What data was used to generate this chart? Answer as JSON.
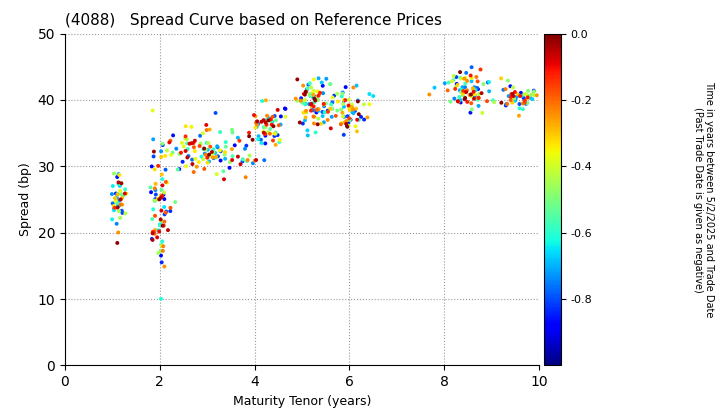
{
  "title": "(4088)   Spread Curve based on Reference Prices",
  "xlabel": "Maturity Tenor (years)",
  "ylabel": "Spread (bp)",
  "colorbar_label_line1": "Time in years between 5/2/2025 and Trade Date",
  "colorbar_label_line2": "(Past Trade Date is given as negative)",
  "xlim": [
    0,
    10
  ],
  "ylim": [
    0,
    50
  ],
  "xticks": [
    0,
    2,
    4,
    6,
    8,
    10
  ],
  "yticks": [
    0,
    10,
    20,
    30,
    40,
    50
  ],
  "cmap": "jet",
  "vmin": -1.0,
  "vmax": 0.0,
  "colorbar_ticks": [
    0.0,
    -0.2,
    -0.4,
    -0.6,
    -0.8
  ],
  "point_size": 8,
  "clusters": [
    {
      "tc": 1.15,
      "ts": 0.08,
      "sc": 25.0,
      "ss": 2.5,
      "n": 50,
      "cmin": -0.9,
      "cmax": 0.0
    },
    {
      "tc": 2.0,
      "ts": 0.12,
      "sc": 23.0,
      "ss": 4.0,
      "n": 70,
      "cmin": -0.9,
      "cmax": 0.0
    },
    {
      "tc": 3.0,
      "ts": 0.55,
      "sc": 32.5,
      "ss": 1.8,
      "n": 120,
      "cmin": -0.9,
      "cmax": 0.0
    },
    {
      "tc": 4.3,
      "ts": 0.2,
      "sc": 36.0,
      "ss": 1.5,
      "n": 60,
      "cmin": -0.9,
      "cmax": 0.0
    },
    {
      "tc": 5.2,
      "ts": 0.22,
      "sc": 39.5,
      "ss": 2.0,
      "n": 90,
      "cmin": -0.9,
      "cmax": 0.0
    },
    {
      "tc": 5.9,
      "ts": 0.25,
      "sc": 38.5,
      "ss": 1.5,
      "n": 65,
      "cmin": -0.9,
      "cmax": 0.0
    },
    {
      "tc": 8.55,
      "ts": 0.3,
      "sc": 41.5,
      "ss": 1.5,
      "n": 80,
      "cmin": -0.9,
      "cmax": 0.0
    },
    {
      "tc": 9.55,
      "ts": 0.18,
      "sc": 40.5,
      "ss": 1.0,
      "n": 50,
      "cmin": -0.9,
      "cmax": 0.0
    }
  ]
}
